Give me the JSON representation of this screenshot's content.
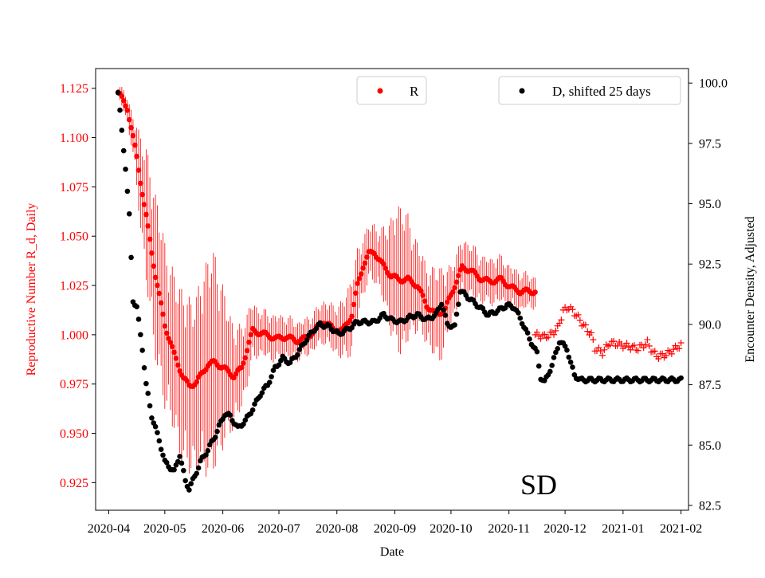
{
  "colors": {
    "r_series": "#ff0000",
    "d_series": "#000000",
    "axes": "#000000",
    "background": "#ffffff"
  },
  "chart_data": {
    "type": "scatter",
    "title": "",
    "region_label": "SD",
    "xlabel": "Date",
    "ylabel_left": "Reproductive Number R_d, Daily",
    "ylabel_right": "Encounter Density, Adjusted",
    "xlim": [
      "2020-03-25",
      "2021-02-05"
    ],
    "ylim_left": [
      0.911,
      1.135
    ],
    "ylim_right": [
      82.3,
      100.6
    ],
    "x_ticks": [
      "2020-04",
      "2020-05",
      "2020-06",
      "2020-07",
      "2020-08",
      "2020-09",
      "2020-10",
      "2020-11",
      "2020-12",
      "2021-01",
      "2021-02"
    ],
    "y_ticks_left": [
      "0.925",
      "0.950",
      "0.975",
      "1.000",
      "1.025",
      "1.050",
      "1.075",
      "1.100",
      "1.125"
    ],
    "y_ticks_right": [
      "82.5",
      "85.0",
      "87.5",
      "90.0",
      "92.5",
      "95.0",
      "97.5",
      "100.0"
    ],
    "legend": {
      "r_label": "R",
      "d_label": "D, shifted 25 days"
    },
    "series": [
      {
        "name": "R",
        "axis": "left",
        "marker": "dot-with-errorbars",
        "start": "2020-04-06",
        "end": "2020-11-15",
        "knots": [
          [
            0,
            1.123
          ],
          [
            5,
            1.115
          ],
          [
            10,
            1.09
          ],
          [
            15,
            1.06
          ],
          [
            20,
            1.03
          ],
          [
            25,
            1.005
          ],
          [
            30,
            0.99
          ],
          [
            35,
            0.978
          ],
          [
            38,
            0.974
          ],
          [
            42,
            0.976
          ],
          [
            48,
            0.985
          ],
          [
            52,
            0.986
          ],
          [
            58,
            0.982
          ],
          [
            62,
            0.979
          ],
          [
            66,
            0.983
          ],
          [
            70,
            0.996
          ],
          [
            72,
            1.002
          ],
          [
            76,
            1.001
          ],
          [
            85,
            0.998
          ],
          [
            90,
            0.999
          ],
          [
            95,
            0.997
          ],
          [
            100,
            0.998
          ],
          [
            105,
            1.002
          ],
          [
            110,
            1.007
          ],
          [
            115,
            1.003
          ],
          [
            120,
            1.002
          ],
          [
            125,
            1.01
          ],
          [
            128,
            1.025
          ],
          [
            131,
            1.035
          ],
          [
            134,
            1.041
          ],
          [
            137,
            1.042
          ],
          [
            141,
            1.036
          ],
          [
            146,
            1.03
          ],
          [
            150,
            1.028
          ],
          [
            155,
            1.028
          ],
          [
            160,
            1.025
          ],
          [
            165,
            1.015
          ],
          [
            170,
            1.01
          ],
          [
            175,
            1.013
          ],
          [
            180,
            1.025
          ],
          [
            184,
            1.034
          ],
          [
            188,
            1.033
          ],
          [
            193,
            1.029
          ],
          [
            198,
            1.027
          ],
          [
            205,
            1.028
          ],
          [
            210,
            1.024
          ],
          [
            215,
            1.022
          ],
          [
            223,
            1.022
          ]
        ],
        "err_knots": [
          [
            0,
            0.003
          ],
          [
            8,
            0.01
          ],
          [
            15,
            0.035
          ],
          [
            22,
            0.045
          ],
          [
            28,
            0.04
          ],
          [
            35,
            0.045
          ],
          [
            42,
            0.045
          ],
          [
            50,
            0.06
          ],
          [
            55,
            0.045
          ],
          [
            62,
            0.025
          ],
          [
            68,
            0.02
          ],
          [
            75,
            0.012
          ],
          [
            85,
            0.012
          ],
          [
            95,
            0.01
          ],
          [
            105,
            0.01
          ],
          [
            115,
            0.012
          ],
          [
            120,
            0.015
          ],
          [
            125,
            0.02
          ],
          [
            132,
            0.015
          ],
          [
            140,
            0.015
          ],
          [
            148,
            0.035
          ],
          [
            152,
            0.04
          ],
          [
            158,
            0.025
          ],
          [
            165,
            0.02
          ],
          [
            172,
            0.025
          ],
          [
            178,
            0.015
          ],
          [
            185,
            0.015
          ],
          [
            195,
            0.012
          ],
          [
            205,
            0.012
          ],
          [
            215,
            0.01
          ],
          [
            223,
            0.008
          ]
        ]
      },
      {
        "name": "R",
        "axis": "left",
        "marker": "plus",
        "start": "2020-11-15",
        "end": "2021-02-01",
        "knots": [
          [
            0,
            1.0
          ],
          [
            5,
            0.999
          ],
          [
            8,
            1.0
          ],
          [
            12,
            1.003
          ],
          [
            15,
            1.012
          ],
          [
            18,
            1.014
          ],
          [
            22,
            1.01
          ],
          [
            25,
            1.006
          ],
          [
            30,
            1.0
          ],
          [
            32,
            0.993
          ],
          [
            36,
            0.991
          ],
          [
            40,
            0.996
          ],
          [
            45,
            0.995
          ],
          [
            50,
            0.994
          ],
          [
            55,
            0.993
          ],
          [
            60,
            0.996
          ],
          [
            63,
            0.991
          ],
          [
            66,
            0.989
          ],
          [
            70,
            0.99
          ],
          [
            75,
            0.993
          ],
          [
            78,
            0.995
          ],
          [
            82,
            0.995
          ],
          [
            85,
            0.995
          ],
          [
            88,
            0.997
          ]
        ],
        "err_knots": [
          [
            0,
            0.003
          ],
          [
            40,
            0.003
          ],
          [
            88,
            0.003
          ]
        ]
      },
      {
        "name": "D, shifted 25 days",
        "axis": "right",
        "marker": "dot",
        "start": "2020-04-06",
        "end": "2021-02-01",
        "knots": [
          [
            0,
            99.6
          ],
          [
            2,
            98.0
          ],
          [
            4,
            96.5
          ],
          [
            6,
            94.5
          ],
          [
            8,
            91.0
          ],
          [
            10,
            90.7
          ],
          [
            13,
            89.0
          ],
          [
            15,
            87.5
          ],
          [
            18,
            86.2
          ],
          [
            22,
            85.2
          ],
          [
            25,
            84.3
          ],
          [
            30,
            83.9
          ],
          [
            33,
            84.6
          ],
          [
            36,
            83.5
          ],
          [
            38,
            83.2
          ],
          [
            41,
            83.7
          ],
          [
            44,
            84.3
          ],
          [
            48,
            84.8
          ],
          [
            52,
            85.4
          ],
          [
            57,
            86.3
          ],
          [
            60,
            86.2
          ],
          [
            64,
            85.7
          ],
          [
            68,
            86.0
          ],
          [
            72,
            86.5
          ],
          [
            76,
            87.1
          ],
          [
            80,
            87.5
          ],
          [
            84,
            88.2
          ],
          [
            88,
            88.6
          ],
          [
            92,
            88.4
          ],
          [
            96,
            88.8
          ],
          [
            100,
            89.3
          ],
          [
            105,
            89.8
          ],
          [
            108,
            90.0
          ],
          [
            113,
            89.9
          ],
          [
            118,
            89.6
          ],
          [
            123,
            89.8
          ],
          [
            128,
            90.1
          ],
          [
            133,
            90.1
          ],
          [
            137,
            90.1
          ],
          [
            142,
            90.4
          ],
          [
            146,
            90.2
          ],
          [
            151,
            90.1
          ],
          [
            156,
            90.3
          ],
          [
            160,
            90.4
          ],
          [
            165,
            90.2
          ],
          [
            170,
            90.4
          ],
          [
            173,
            90.9
          ],
          [
            176,
            90.0
          ],
          [
            180,
            89.9
          ],
          [
            183,
            91.4
          ],
          [
            186,
            91.2
          ],
          [
            192,
            90.8
          ],
          [
            198,
            90.4
          ],
          [
            204,
            90.6
          ],
          [
            208,
            90.8
          ],
          [
            212,
            90.7
          ],
          [
            216,
            90.1
          ],
          [
            220,
            89.4
          ],
          [
            224,
            88.8
          ],
          [
            226,
            87.8
          ],
          [
            228,
            87.6
          ],
          [
            232,
            88.3
          ],
          [
            236,
            89.3
          ],
          [
            240,
            89.0
          ],
          [
            242,
            88.4
          ],
          [
            244,
            87.9
          ],
          [
            247,
            87.7
          ],
          [
            300,
            87.7
          ]
        ]
      }
    ]
  }
}
